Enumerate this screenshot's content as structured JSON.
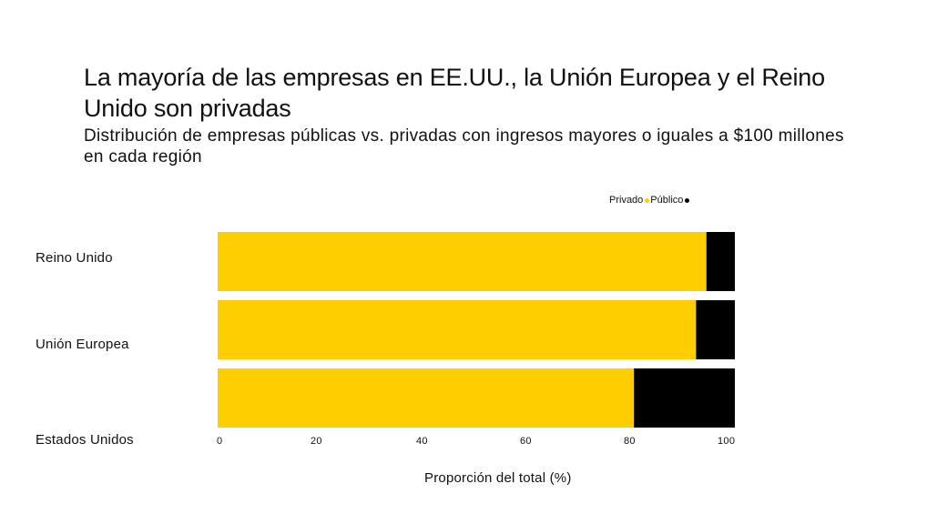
{
  "colors": {
    "privado": "#FFCE00",
    "publico": "#000000"
  },
  "chart_data": {
    "type": "bar",
    "orientation": "horizontal",
    "stacked": true,
    "title": "La mayoría de las empresas en EE.UU., la Unión Europea y el Reino Unido son privadas",
    "subtitle": "Distribución de empresas públicas vs. privadas con ingresos mayores o iguales a $100 millones en cada región",
    "categories": [
      "Reino Unido",
      "Unión Europea",
      "Estados Unidos"
    ],
    "series": [
      {
        "name": "Privado",
        "values": [
          94.5,
          92.5,
          80.5
        ]
      },
      {
        "name": "Público",
        "values": [
          5.5,
          7.5,
          19.5
        ]
      }
    ],
    "xlabel": "Proporción del total (%)",
    "ylabel": "",
    "xlim": [
      0,
      100
    ],
    "xticks": [
      0,
      20,
      40,
      60,
      80,
      100
    ],
    "legend_position": "top-right",
    "grid": false
  }
}
